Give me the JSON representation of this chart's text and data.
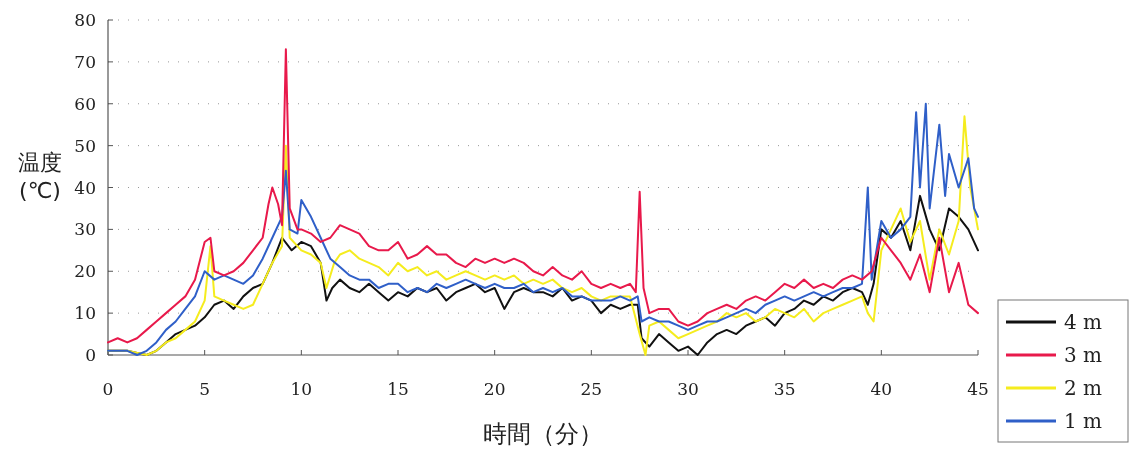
{
  "chart_data": {
    "type": "line",
    "xlabel": "時間（分）",
    "ylabel": "温度(℃)",
    "xlim": [
      0,
      45
    ],
    "ylim": [
      0,
      80
    ],
    "xticks": [
      0,
      5,
      10,
      15,
      20,
      25,
      30,
      35,
      40,
      45
    ],
    "yticks": [
      0,
      10,
      20,
      30,
      40,
      50,
      60,
      70,
      80
    ],
    "grid": "y",
    "legend": "bottom right",
    "line_style": "solid",
    "series": [
      {
        "name": "4 m",
        "color": "#111111",
        "x": [
          0,
          1,
          1.5,
          2,
          2.5,
          3,
          3.5,
          4,
          4.5,
          5,
          5.5,
          6,
          6.5,
          7,
          7.5,
          8,
          8.5,
          9,
          9.5,
          10,
          10.5,
          11,
          11.3,
          11.6,
          12,
          12.5,
          13,
          13.5,
          14,
          14.5,
          15,
          15.5,
          16,
          16.5,
          17,
          17.5,
          18,
          18.5,
          19,
          19.5,
          20,
          20.5,
          21,
          21.5,
          22,
          22.5,
          23,
          23.5,
          24,
          24.5,
          25,
          25.5,
          26,
          26.5,
          27,
          27.4,
          27.6,
          28,
          28.5,
          29,
          29.5,
          30,
          30.5,
          31,
          31.5,
          32,
          32.5,
          33,
          33.5,
          34,
          34.5,
          35,
          35.5,
          36,
          36.5,
          37,
          37.5,
          38,
          38.5,
          39,
          39.3,
          39.6,
          40,
          40.5,
          41,
          41.5,
          42,
          42.5,
          43,
          43.5,
          44,
          44.5,
          45
        ],
        "values": [
          1,
          1,
          0.5,
          0,
          1,
          3,
          5,
          6,
          7,
          9,
          12,
          13,
          11,
          14,
          16,
          17,
          22,
          28,
          25,
          27,
          26,
          22,
          13,
          16,
          18,
          16,
          15,
          17,
          15,
          13,
          15,
          14,
          16,
          15,
          16,
          13,
          15,
          16,
          17,
          15,
          16,
          11,
          15,
          16,
          15,
          15,
          14,
          16,
          13,
          14,
          13,
          10,
          12,
          11,
          12,
          12,
          4,
          2,
          5,
          3,
          1,
          2,
          0,
          3,
          5,
          6,
          5,
          7,
          8,
          9,
          7,
          10,
          11,
          13,
          12,
          14,
          13,
          15,
          16,
          15,
          12,
          17,
          30,
          28,
          32,
          25,
          38,
          30,
          25,
          35,
          33,
          30,
          25
        ]
      },
      {
        "name": "3 m",
        "color": "#e8194b",
        "x": [
          0,
          0.5,
          1,
          1.5,
          2,
          2.5,
          3,
          3.5,
          4,
          4.5,
          5,
          5.3,
          5.5,
          6,
          6.5,
          7,
          7.5,
          8,
          8.3,
          8.5,
          8.8,
          9,
          9.2,
          9.4,
          9.8,
          10,
          10.5,
          11,
          11.5,
          12,
          12.5,
          13,
          13.5,
          14,
          14.5,
          15,
          15.5,
          16,
          16.5,
          17,
          17.5,
          18,
          18.5,
          19,
          19.5,
          20,
          20.5,
          21,
          21.5,
          22,
          22.5,
          23,
          23.5,
          24,
          24.5,
          25,
          25.5,
          26,
          26.5,
          27,
          27.3,
          27.5,
          27.7,
          28,
          28.5,
          29,
          29.5,
          30,
          30.5,
          31,
          31.5,
          32,
          32.5,
          33,
          33.5,
          34,
          34.5,
          35,
          35.5,
          36,
          36.5,
          37,
          37.5,
          38,
          38.5,
          39,
          39.5,
          40,
          40.5,
          41,
          41.5,
          42,
          42.5,
          43,
          43.5,
          44,
          44.5,
          45
        ],
        "values": [
          3,
          4,
          3,
          4,
          6,
          8,
          10,
          12,
          14,
          18,
          27,
          28,
          20,
          19,
          20,
          22,
          25,
          28,
          36,
          40,
          36,
          31,
          73,
          35,
          30,
          30,
          29,
          27,
          28,
          31,
          30,
          29,
          26,
          25,
          25,
          27,
          23,
          24,
          26,
          24,
          24,
          22,
          21,
          23,
          22,
          23,
          22,
          23,
          22,
          20,
          19,
          21,
          19,
          18,
          20,
          17,
          16,
          17,
          16,
          17,
          15,
          39,
          16,
          10,
          11,
          11,
          8,
          7,
          8,
          10,
          11,
          12,
          11,
          13,
          14,
          13,
          15,
          17,
          16,
          18,
          16,
          17,
          16,
          18,
          19,
          18,
          20,
          28,
          25,
          22,
          18,
          24,
          15,
          28,
          15,
          22,
          12,
          10
        ]
      },
      {
        "name": "2 m",
        "color": "#f5ec1e",
        "x": [
          0,
          1,
          2,
          2.5,
          3,
          3.5,
          4,
          4.5,
          5,
          5.3,
          5.5,
          6,
          6.5,
          7,
          7.5,
          8,
          8.5,
          9,
          9.2,
          9.4,
          10,
          10.5,
          11,
          11.3,
          11.7,
          12,
          12.5,
          13,
          13.5,
          14,
          14.5,
          15,
          15.5,
          16,
          16.5,
          17,
          17.5,
          18,
          18.5,
          19,
          19.5,
          20,
          20.5,
          21,
          21.5,
          22,
          22.5,
          23,
          23.5,
          24,
          24.5,
          25,
          25.5,
          26,
          27,
          27.5,
          27.8,
          28,
          28.5,
          29,
          29.5,
          30,
          30.5,
          31,
          31.5,
          32,
          32.5,
          33,
          33.5,
          34,
          34.5,
          35,
          35.5,
          36,
          36.5,
          37,
          37.5,
          38,
          38.5,
          39,
          39.3,
          39.6,
          40,
          40.5,
          41,
          41.5,
          42,
          42.5,
          43,
          43.5,
          44,
          44.3,
          44.6,
          45
        ],
        "values": [
          1,
          1,
          0,
          1,
          3,
          4,
          6,
          8,
          13,
          26,
          14,
          13,
          12,
          11,
          12,
          17,
          22,
          26,
          50,
          28,
          25,
          24,
          22,
          16,
          22,
          24,
          25,
          23,
          22,
          21,
          19,
          22,
          20,
          21,
          19,
          20,
          18,
          19,
          20,
          19,
          18,
          19,
          18,
          19,
          17,
          18,
          17,
          18,
          16,
          15,
          16,
          14,
          13,
          14,
          14,
          5,
          0,
          7,
          8,
          6,
          4,
          5,
          6,
          7,
          8,
          10,
          9,
          10,
          8,
          9,
          11,
          10,
          9,
          11,
          8,
          10,
          11,
          12,
          13,
          14,
          10,
          8,
          25,
          30,
          35,
          27,
          32,
          18,
          30,
          24,
          32,
          57,
          40,
          30
        ]
      },
      {
        "name": "1 m",
        "color": "#2f5fc8",
        "x": [
          0,
          1,
          1.5,
          2,
          2.5,
          3,
          3.5,
          4,
          4.5,
          5,
          5.5,
          6,
          6.5,
          7,
          7.5,
          8,
          8.5,
          9,
          9.2,
          9.4,
          9.8,
          10,
          10.5,
          11,
          11.5,
          12,
          12.5,
          13,
          13.5,
          14,
          14.5,
          15,
          15.5,
          16,
          16.5,
          17,
          17.5,
          18,
          18.5,
          19,
          19.5,
          20,
          20.5,
          21,
          21.5,
          22,
          22.5,
          23,
          23.5,
          24,
          24.5,
          25,
          25.5,
          26,
          26.5,
          27,
          27.4,
          27.6,
          28,
          28.5,
          29,
          29.5,
          30,
          30.5,
          31,
          31.5,
          32,
          32.5,
          33,
          33.5,
          34,
          34.5,
          35,
          35.5,
          36,
          36.5,
          37,
          37.5,
          38,
          38.5,
          39,
          39.3,
          39.5,
          40,
          40.5,
          41,
          41.5,
          41.8,
          42,
          42.3,
          42.5,
          43,
          43.3,
          43.5,
          44,
          44.5,
          44.8,
          45
        ],
        "values": [
          1,
          1,
          0,
          1,
          3,
          6,
          8,
          11,
          14,
          20,
          18,
          19,
          18,
          17,
          19,
          23,
          28,
          33,
          44,
          30,
          29,
          37,
          33,
          28,
          23,
          21,
          19,
          18,
          18,
          16,
          17,
          17,
          15,
          16,
          15,
          17,
          16,
          17,
          18,
          17,
          16,
          17,
          16,
          16,
          17,
          15,
          16,
          15,
          16,
          14,
          14,
          13,
          13,
          13,
          14,
          13,
          14,
          8,
          9,
          8,
          8,
          7,
          6,
          7,
          8,
          8,
          9,
          10,
          11,
          10,
          12,
          13,
          14,
          13,
          14,
          15,
          14,
          15,
          16,
          16,
          17,
          40,
          18,
          32,
          28,
          30,
          33,
          58,
          40,
          60,
          35,
          55,
          38,
          48,
          40,
          47,
          35,
          33
        ]
      }
    ]
  }
}
